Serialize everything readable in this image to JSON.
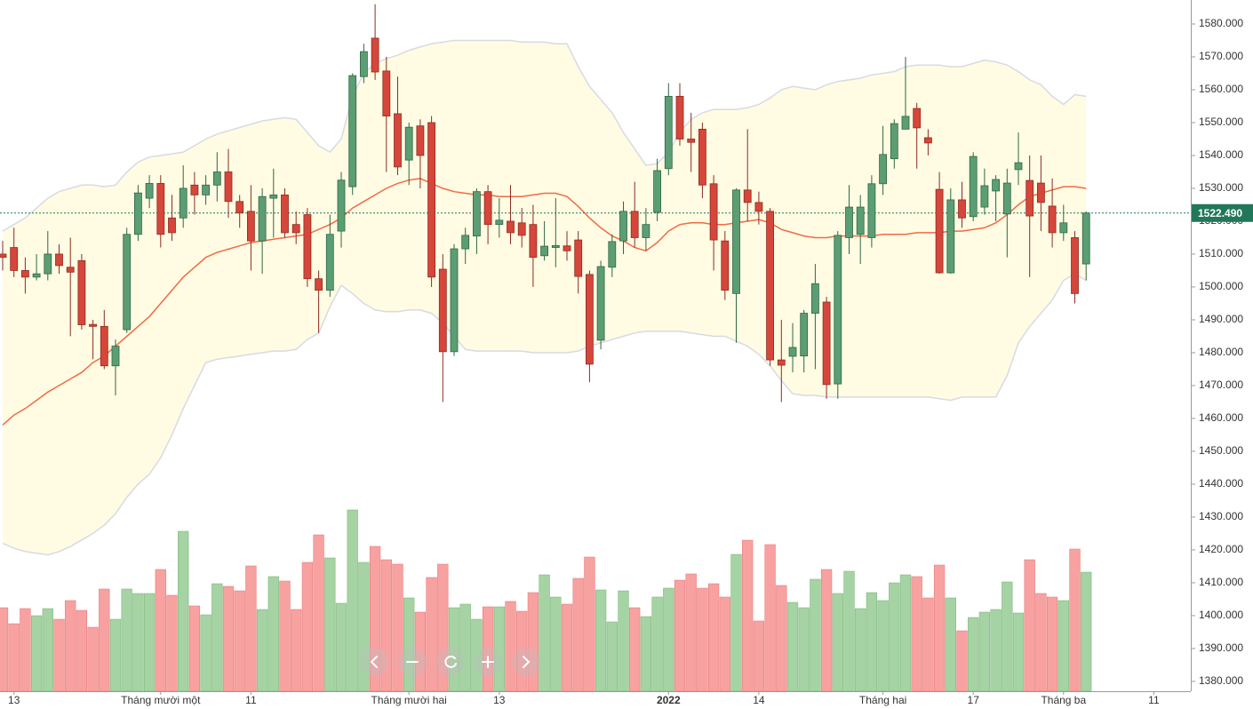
{
  "chart_data": {
    "type": "candlestick",
    "categories": [
      null,
      "13",
      null,
      null,
      null,
      null,
      null,
      null,
      null,
      null,
      null,
      null,
      null,
      null,
      "Tháng mười một",
      null,
      null,
      null,
      null,
      null,
      null,
      null,
      "11",
      null,
      null,
      null,
      null,
      null,
      null,
      null,
      null,
      null,
      null,
      null,
      null,
      null,
      "Tháng mười hai",
      null,
      null,
      null,
      null,
      null,
      null,
      null,
      "13",
      null,
      null,
      null,
      null,
      null,
      null,
      null,
      null,
      null,
      null,
      null,
      null,
      null,
      null,
      "2022",
      null,
      null,
      null,
      null,
      null,
      null,
      null,
      "14",
      null,
      null,
      null,
      null,
      null,
      null,
      null,
      null,
      null,
      null,
      "Tháng hai",
      null,
      null,
      null,
      null,
      null,
      null,
      null,
      "17",
      null,
      null,
      null,
      null,
      null,
      null,
      null,
      "Tháng ba",
      null,
      null,
      null,
      null,
      null,
      null,
      null,
      "11"
    ],
    "open": [
      1510,
      1512,
      1505,
      1503,
      1504,
      1510,
      1506,
      1508,
      1488.6,
      1488,
      1476,
      1487,
      1516,
      1527,
      1531.5,
      1521,
      1521,
      1531,
      1528,
      1531,
      1535,
      1526,
      1523,
      1514,
      1527,
      1528,
      1519,
      1522,
      1502.5,
      1499,
      1517,
      1530.5,
      1564,
      1575.7,
      1565.7,
      1552.7,
      1538.6,
      1549,
      1550,
      1505.4,
      1480.3,
      1511.6,
      1515.5,
      1529,
      1519,
      1520,
      1519.5,
      1519,
      1509.5,
      1512,
      1512.5,
      1514.3,
      1503.8,
      1483.8,
      1506,
      1514,
      1523,
      1515,
      1522.7,
      1536,
      1558,
      1545,
      1548,
      1531.4,
      1514,
      1498,
      1529.5,
      1525.7,
      1523,
      1477.8,
      1478.9,
      1479,
      1492,
      1495.4,
      1470.5,
      1515,
      1516,
      1515,
      1531.4,
      1539,
      1548,
      1554.3,
      1545.4,
      1529.7,
      1504.3,
      1526.5,
      1521.4,
      1524.3,
      1529.2,
      1522.2,
      1535.7,
      1532.4,
      1531.6,
      1524.6,
      1516.5,
      1515,
      1507,
      null,
      null,
      null,
      null,
      null,
      null
    ],
    "high": [
      1514,
      1518,
      1509,
      1510,
      1517,
      1513,
      1515,
      1510,
      1490,
      1493,
      1484,
      1518,
      1531,
      1534,
      1534,
      1528,
      1537,
      1535,
      1534,
      1541,
      1542,
      1528,
      1531,
      1530,
      1536,
      1530,
      1523,
      1524,
      1505,
      1522,
      1535,
      1565,
      1574,
      1586,
      1570,
      1564,
      1550,
      1551,
      1552,
      1510,
      1513,
      1518,
      1530,
      1531,
      1527,
      1531,
      1524,
      1525,
      1520,
      1527,
      1517,
      1517,
      1505,
      1508,
      1516,
      1526,
      1532,
      1524,
      1539,
      1562,
      1562,
      1553,
      1550,
      1534,
      1517,
      1530,
      1548,
      1529,
      1524,
      1490,
      1489,
      1493,
      1507,
      1497,
      1517,
      1531,
      1528,
      1534,
      1549,
      1551,
      1570,
      1556,
      1548,
      1535,
      1530,
      1532,
      1541,
      1536,
      1534,
      1536,
      1547,
      1540,
      1540,
      1533,
      1525,
      1517,
      1523,
      null,
      null,
      null,
      null,
      null,
      null
    ],
    "low": [
      1505,
      1503,
      1498,
      1502,
      1502,
      1504,
      1485,
      1487,
      1478,
      1475,
      1467,
      1486,
      1514,
      1524,
      1512,
      1514,
      1518,
      1522,
      1525,
      1526,
      1521,
      1518,
      1505,
      1504,
      1515,
      1515,
      1513,
      1500,
      1486,
      1497,
      1512,
      1528,
      1562,
      1563,
      1535,
      1534,
      1531,
      1530,
      1500,
      1465,
      1479,
      1507,
      1510,
      1513,
      1515,
      1513,
      1512,
      1500,
      1508,
      1506,
      1508,
      1498,
      1471,
      1481,
      1503,
      1510,
      1512,
      1511,
      1520,
      1534,
      1543,
      1535,
      1527,
      1505,
      1496,
      1483,
      1520,
      1519,
      1476,
      1465,
      1474,
      1474,
      1475,
      1466,
      1466,
      1510,
      1507,
      1512,
      1528,
      1536,
      1548,
      1536,
      1540,
      1504,
      1504,
      1518,
      1520,
      1522,
      1520,
      1509,
      1531,
      1503,
      1517,
      1512,
      1514,
      1495,
      1502,
      null,
      null,
      null,
      null,
      null,
      null
    ],
    "close": [
      1509,
      1505,
      1503,
      1504,
      1510,
      1506.5,
      1504.5,
      1488.5,
      1488,
      1476,
      1482,
      1516,
      1528.6,
      1531.5,
      1516,
      1516.5,
      1530,
      1528,
      1531,
      1535,
      1526,
      1522.5,
      1514,
      1527.5,
      1528,
      1516.5,
      1516.5,
      1502.5,
      1499,
      1516,
      1532.5,
      1564.3,
      1571.6,
      1565.4,
      1552,
      1536.5,
      1548.6,
      1540,
      1503,
      1480.3,
      1511.6,
      1515.7,
      1529,
      1519,
      1520.3,
      1516.5,
      1515.7,
      1509,
      1512.4,
      1512.6,
      1511,
      1503.2,
      1476.5,
      1506.2,
      1513.8,
      1523,
      1515,
      1519,
      1535.4,
      1558,
      1545,
      1544,
      1531,
      1514.3,
      1499,
      1529.5,
      1525.7,
      1523,
      1477.8,
      1476.2,
      1481.6,
      1492,
      1501,
      1470.3,
      1515.7,
      1524.3,
      1524.3,
      1531.4,
      1540.3,
      1549.7,
      1551.9,
      1548.4,
      1543.8,
      1504.3,
      1526.5,
      1521,
      1539.7,
      1530.8,
      1532.7,
      1531.6,
      1537.8,
      1521.6,
      1525.7,
      1516.5,
      1519.5,
      1498,
      1522.49,
      null,
      null,
      null,
      null,
      null,
      null
    ],
    "volume": [
      94,
      76,
      93,
      85,
      93,
      81,
      102,
      91,
      72,
      115,
      81,
      115,
      110,
      110,
      137,
      108,
      180,
      96,
      86,
      121,
      118,
      113,
      141,
      92,
      129,
      124,
      92,
      145,
      176,
      150,
      99,
      204,
      145,
      163,
      148,
      143,
      105,
      89,
      128,
      143,
      94,
      98,
      81,
      95,
      95,
      101,
      90,
      111,
      131,
      106,
      98,
      127,
      151,
      114,
      78,
      113,
      94,
      84,
      106,
      116,
      125,
      132,
      116,
      121,
      106,
      154,
      170,
      79,
      165,
      119,
      100,
      94,
      126,
      137,
      110,
      135,
      93,
      111,
      102,
      122,
      131,
      129,
      105,
      142,
      105,
      68,
      83,
      89,
      92,
      123,
      88,
      148,
      110,
      106,
      102,
      160,
      134,
      null,
      null,
      null,
      null,
      null,
      null
    ],
    "ma": [
      1458,
      1461,
      1463,
      1465.5,
      1468,
      1470,
      1472,
      1474,
      1477,
      1479,
      1482,
      1485,
      1488,
      1491,
      1495,
      1499,
      1503,
      1506,
      1509,
      1510.5,
      1511.5,
      1512.5,
      1513.5,
      1514,
      1514.5,
      1515,
      1515.5,
      1516,
      1517.5,
      1519,
      1521,
      1524,
      1526,
      1528,
      1530,
      1531.5,
      1532.5,
      1533,
      1531.5,
      1530,
      1529,
      1528.5,
      1528,
      1528,
      1527.5,
      1527.5,
      1527.5,
      1528,
      1528.5,
      1528.5,
      1527.5,
      1524.5,
      1521,
      1518,
      1515.5,
      1514,
      1512,
      1511,
      1513.5,
      1517,
      1519,
      1519.5,
      1519.5,
      1519,
      1519,
      1519.5,
      1520,
      1520.5,
      1519.5,
      1517.5,
      1516.5,
      1515.5,
      1515,
      1515,
      1515.5,
      1515.5,
      1515.5,
      1515.5,
      1516,
      1516,
      1516,
      1516.5,
      1516.5,
      1516.5,
      1517,
      1517,
      1517.5,
      1518,
      1519.5,
      1522,
      1525,
      1527.5,
      1528.5,
      1529.5,
      1530.5,
      1530.5,
      1530,
      null,
      null,
      null,
      null,
      null,
      null
    ],
    "upper": [
      1517,
      1519,
      1521,
      1524,
      1527,
      1529,
      1530,
      1531,
      1531,
      1530.5,
      1531,
      1535,
      1538,
      1539.5,
      1540,
      1540.5,
      1541,
      1543,
      1545,
      1546.5,
      1547.5,
      1548.5,
      1549.5,
      1550.5,
      1551,
      1551.5,
      1551,
      1547,
      1543,
      1541,
      1545,
      1558,
      1565,
      1568,
      1569.5,
      1570.5,
      1572,
      1573,
      1574,
      1574.5,
      1575,
      1575,
      1575,
      1575,
      1575,
      1575,
      1574.5,
      1574.5,
      1574.5,
      1574,
      1574,
      1567,
      1561,
      1557,
      1553,
      1547,
      1542,
      1537,
      1537.5,
      1541,
      1547,
      1551,
      1553,
      1554,
      1554,
      1554,
      1554.5,
      1555.5,
      1557.5,
      1560,
      1561,
      1560.5,
      1560,
      1561.5,
      1562.5,
      1563,
      1563.5,
      1564.5,
      1565,
      1565.5,
      1567,
      1567.5,
      1567.5,
      1567.5,
      1567,
      1567,
      1568,
      1569,
      1568.5,
      1567.5,
      1565.5,
      1563,
      1561.5,
      1558,
      1555.5,
      1558.5,
      1558,
      null,
      null,
      null,
      null,
      null,
      null
    ],
    "lower": [
      1422,
      1420.5,
      1419.5,
      1419,
      1418.5,
      1419.5,
      1421,
      1423,
      1425,
      1427.5,
      1431,
      1436,
      1440,
      1443,
      1448,
      1455,
      1463,
      1470,
      1477,
      1478,
      1478.5,
      1479,
      1479.5,
      1480,
      1480.5,
      1480.5,
      1481,
      1484,
      1486,
      1494,
      1500.5,
      1498,
      1495,
      1493,
      1492.5,
      1492.5,
      1493,
      1493,
      1492,
      1489,
      1485,
      1481,
      1480.5,
      1480.5,
      1480.5,
      1480.5,
      1480.5,
      1480,
      1480,
      1480,
      1480,
      1480.5,
      1482,
      1483,
      1484,
      1485,
      1486,
      1486.5,
      1486.5,
      1486.5,
      1486.5,
      1486,
      1485.5,
      1485,
      1485,
      1483.5,
      1482,
      1479.5,
      1476,
      1471.5,
      1467.5,
      1467,
      1467,
      1466.5,
      1466.5,
      1466.5,
      1466.5,
      1466.5,
      1466.5,
      1466.5,
      1466.5,
      1466.5,
      1466.5,
      1466,
      1465.5,
      1466.5,
      1466.5,
      1466.5,
      1466.5,
      1473,
      1483,
      1488,
      1492,
      1496,
      1502,
      1504,
      1502,
      null,
      null,
      null,
      null,
      null,
      null
    ],
    "last_price": {
      "value": 1522.49,
      "label": "1522.490"
    },
    "ylim": [
      1377,
      1587.3
    ],
    "yticks": [
      {
        "value": 1380,
        "label": "1380.000"
      },
      {
        "value": 1390,
        "label": "1390.000"
      },
      {
        "value": 1400,
        "label": "1400.000"
      },
      {
        "value": 1410,
        "label": "1410.000"
      },
      {
        "value": 1420,
        "label": "1420.000"
      },
      {
        "value": 1430,
        "label": "1430.000"
      },
      {
        "value": 1440,
        "label": "1440.000"
      },
      {
        "value": 1450,
        "label": "1450.000"
      },
      {
        "value": 1460,
        "label": "1460.000"
      },
      {
        "value": 1470,
        "label": "1470.000"
      },
      {
        "value": 1480,
        "label": "1480.000"
      },
      {
        "value": 1490,
        "label": "1490.000"
      },
      {
        "value": 1500,
        "label": "1500.000"
      },
      {
        "value": 1510,
        "label": "1510.000"
      },
      {
        "value": 1520,
        "label": "1520.000"
      },
      {
        "value": 1530,
        "label": "1530.000"
      },
      {
        "value": 1540,
        "label": "1540.000"
      },
      {
        "value": 1550,
        "label": "1550.000"
      },
      {
        "value": 1560,
        "label": "1560.000"
      },
      {
        "value": 1570,
        "label": "1570.000"
      },
      {
        "value": 1580,
        "label": "1580.000"
      }
    ],
    "up_color": "#5c9e74",
    "down_color": "#d6463a",
    "volume_up_color": "#a6d3a3",
    "volume_down_color": "#f8a1a1",
    "ma_color": "#f26a45",
    "band_color": "#d9d9e3",
    "band_fill": "#fffce3",
    "last_price_color": "#21775a"
  }
}
